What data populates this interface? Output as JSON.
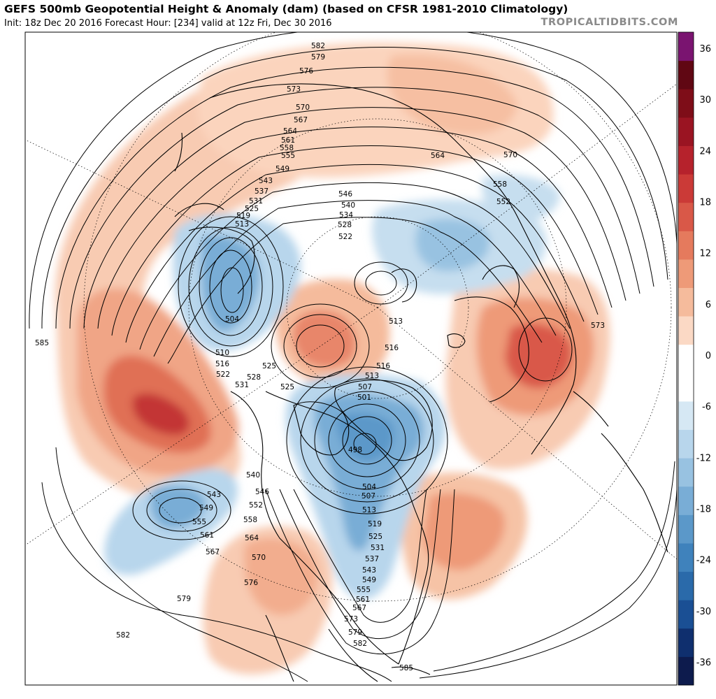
{
  "header": {
    "title": "GEFS 500mb Geopotential Height & Anomaly (dam) (based on CFSR 1981-2010 Climatology)",
    "subtitle": "Init: 18z Dec 20 2016   Forecast Hour: [234]   valid at 12z Fri, Dec 30 2016",
    "brand": "TROPICALTIDBITS.COM"
  },
  "colorbar": {
    "ticks": [
      "36",
      "30",
      "24",
      "18",
      "12",
      "6",
      "0",
      "-6",
      "-12",
      "-18",
      "-24",
      "-30",
      "-36"
    ],
    "colors": [
      "#0d1b4d",
      "#0f2f6e",
      "#1a4f94",
      "#2a6aaa",
      "#3f82bc",
      "#5b98c9",
      "#79add6",
      "#98c2e1",
      "#b8d6ec",
      "#d6e8f4",
      "#ffffff",
      "#ffffff",
      "#fbd9c5",
      "#f5bb9c",
      "#ee9a78",
      "#e57a5d",
      "#d95848",
      "#cb3a37",
      "#b6222c",
      "#9a1422",
      "#7e0d18",
      "#600713",
      "#7a1470"
    ]
  },
  "contour_labels": [
    "582",
    "579",
    "576",
    "573",
    "570",
    "567",
    "564",
    "561",
    "558",
    "555",
    "549",
    "543",
    "537",
    "531",
    "525",
    "519",
    "513",
    "546",
    "540",
    "534",
    "528",
    "522",
    "564",
    "570",
    "558",
    "552",
    "573",
    "513",
    "516",
    "504",
    "510",
    "516",
    "522",
    "525",
    "531",
    "528",
    "525",
    "516",
    "513",
    "507",
    "501",
    "498",
    "504",
    "507",
    "513",
    "519",
    "525",
    "531",
    "537",
    "543",
    "549",
    "555",
    "561",
    "567",
    "573",
    "579",
    "582",
    "585",
    "540",
    "546",
    "543",
    "549",
    "552",
    "555",
    "558",
    "561",
    "564",
    "567",
    "570",
    "576",
    "579",
    "582",
    "585"
  ]
}
